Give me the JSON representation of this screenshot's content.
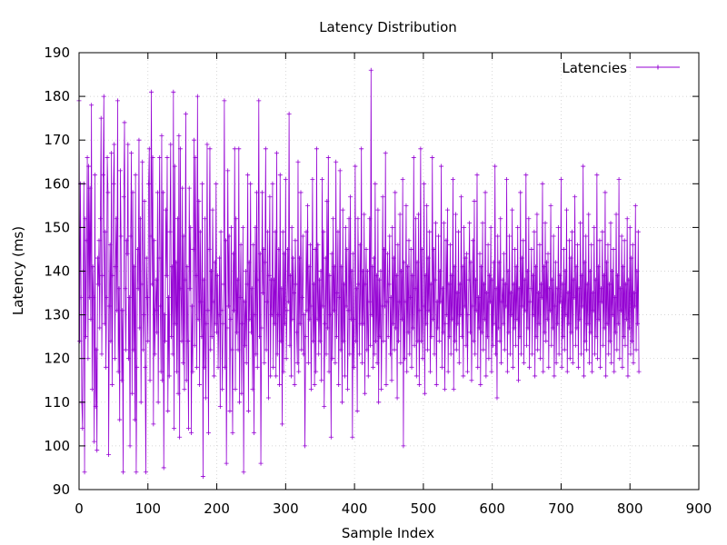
{
  "chart_data": {
    "type": "line",
    "title": "Latency Distribution",
    "xlabel": "Sample Index",
    "ylabel": "Latency (ms)",
    "xlim": [
      0,
      900
    ],
    "ylim": [
      90,
      190
    ],
    "xticks": [
      0,
      100,
      200,
      300,
      400,
      500,
      600,
      700,
      800,
      900
    ],
    "yticks": [
      90,
      100,
      110,
      120,
      130,
      140,
      150,
      160,
      170,
      180,
      190
    ],
    "grid": true,
    "legend_position": "top-right",
    "series": [
      {
        "name": "Latencies",
        "color": "#9400d3",
        "marker": "plus",
        "values": [
          179,
          124,
          160,
          134,
          110,
          104,
          140,
          160,
          94,
          152,
          125,
          147,
          166,
          120,
          164,
          134,
          159,
          129,
          178,
          113,
          141,
          134,
          101,
          162,
          109,
          122,
          99,
          143,
          137,
          147,
          127,
          152,
          175,
          121,
          139,
          162,
          180,
          128,
          149,
          118,
          134,
          166,
          158,
          98,
          132,
          146,
          124,
          167,
          114,
          139,
          160,
          169,
          120,
          141,
          152,
          131,
          179,
          117,
          136,
          106,
          163,
          148,
          115,
          131,
          94,
          157,
          174,
          136,
          122,
          147,
          144,
          169,
          120,
          134,
          100,
          148,
          167,
          112,
          158,
          122,
          141,
          106,
          162,
          94,
          118,
          145,
          136,
          170,
          127,
          152,
          110,
          137,
          165,
          122,
          130,
          156,
          118,
          94,
          143,
          134,
          124,
          160,
          168,
          115,
          148,
          181,
          137,
          166,
          105,
          147,
          121,
          131,
          138,
          126,
          158,
          110,
          143,
          166,
          132,
          117,
          171,
          115,
          158,
          95,
          130,
          124,
          154,
          139,
          166,
          108,
          134,
          116,
          149,
          169,
          125,
          141,
          121,
          181,
          104,
          164,
          128,
          142,
          117,
          152,
          112,
          171,
          102,
          168,
          136,
          124,
          159,
          119,
          148,
          113,
          138,
          176,
          115,
          141,
          124,
          104,
          159,
          136,
          150,
          103,
          132,
          117,
          145,
          170,
          123,
          166,
          139,
          118,
          180,
          129,
          156,
          114,
          149,
          133,
          125,
          160,
          93,
          138,
          118,
          152,
          111,
          128,
          169,
          131,
          103,
          145,
          168,
          122,
          140,
          125,
          154,
          133,
          116,
          142,
          128,
          160,
          126,
          139,
          118,
          130,
          143,
          109,
          149,
          131,
          113,
          128,
          137,
          179,
          118,
          147,
          96,
          127,
          163,
          132,
          148,
          108,
          129,
          150,
          122,
          103,
          144,
          131,
          168,
          113,
          152,
          126,
          138,
          122,
          168,
          110,
          134,
          146,
          112,
          128,
          150,
          94,
          133,
          123,
          140,
          119,
          137,
          162,
          108,
          142,
          129,
          160,
          126,
          136,
          113,
          146,
          103,
          130,
          150,
          121,
          158,
          118,
          138,
          179,
          125,
          144,
          96,
          127,
          158,
          135,
          145,
          119,
          142,
          168,
          122,
          133,
          149,
          111,
          139,
          157,
          116,
          138,
          130,
          160,
          118,
          138,
          128,
          149,
          116,
          167,
          121,
          130,
          145,
          114,
          162,
          124,
          136,
          105,
          149,
          117,
          144,
          128,
          161,
          120,
          131,
          145,
          133,
          176,
          123,
          139,
          116,
          150,
          129,
          143,
          135,
          114,
          147,
          137,
          126,
          119,
          165,
          117,
          143,
          128,
          158,
          122,
          134,
          148,
          121,
          130,
          100,
          125,
          149,
          131,
          155,
          119,
          141,
          129,
          146,
          113,
          132,
          161,
          124,
          137,
          114,
          145,
          117,
          168,
          129,
          146,
          121,
          138,
          124,
          140,
          115,
          161,
          132,
          149,
          109,
          128,
          143,
          121,
          156,
          127,
          166,
          117,
          139,
          130,
          102,
          144,
          120,
          152,
          131,
          141,
          119,
          165,
          125,
          135,
          149,
          114,
          134,
          163,
          122,
          141,
          110,
          154,
          124,
          137,
          116,
          150,
          132,
          145,
          113,
          131,
          152,
          121,
          157,
          129,
          140,
          102,
          144,
          118,
          129,
          164,
          124,
          136,
          108,
          152,
          137,
          121,
          146,
          128,
          168,
          119,
          140,
          128,
          153,
          112,
          137,
          145,
          122,
          140,
          116,
          133,
          152,
          123,
          186,
          130,
          141,
          118,
          143,
          121,
          160,
          124,
          139,
          119,
          154,
          110,
          138,
          125,
          140,
          113,
          132,
          157,
          124,
          145,
          132,
          167,
          114,
          133,
          144,
          125,
          137,
          148,
          121,
          134,
          115,
          150,
          128,
          143,
          122,
          158,
          127,
          139,
          111,
          146,
          124,
          133,
          153,
          119,
          140,
          129,
          161,
          100,
          142,
          120,
          133,
          155,
          117,
          141,
          126,
          147,
          121,
          134,
          145,
          118,
          139,
          127,
          166,
          123,
          136,
          152,
          116,
          142,
          124,
          153,
          114,
          131,
          168,
          124,
          145,
          120,
          132,
          160,
          112,
          139,
          128,
          155,
          122,
          143,
          131,
          149,
          117,
          137,
          125,
          166,
          129,
          145,
          121,
          138,
          151,
          114,
          133,
          127,
          148,
          124,
          140,
          133,
          164,
          118,
          136,
          126,
          151,
          113,
          128,
          147,
          130,
          154,
          117,
          137,
          125,
          146,
          121,
          139,
          129,
          161,
          113,
          141,
          124,
          153,
          122,
          135,
          128,
          149,
          119,
          137,
          130,
          157,
          125,
          141,
          116,
          150,
          132,
          143,
          123,
          144,
          117,
          130,
          138,
          151,
          126,
          142,
          115,
          132,
          147,
          124,
          156,
          121,
          138,
          131,
          162,
          118,
          134,
          127,
          144,
          114,
          141,
          126,
          151,
          122,
          137,
          129,
          158,
          116,
          135,
          125,
          146,
          120,
          139,
          133,
          150,
          117,
          138,
          123,
          142,
          128,
          164,
          121,
          136,
          111,
          148,
          127,
          142,
          124,
          152,
          119,
          133,
          138,
          128,
          144,
          122,
          137,
          132,
          161,
          117,
          140,
          126,
          148,
          121,
          135,
          130,
          154,
          118,
          137,
          127,
          145,
          123,
          141,
          129,
          150,
          115,
          136,
          125,
          158,
          121,
          143,
          132,
          147,
          119,
          138,
          131,
          162,
          123,
          140,
          127,
          152,
          118,
          133,
          136,
          145,
          121,
          139,
          130,
          149,
          116,
          141,
          125,
          153,
          122,
          135,
          128,
          146,
          120,
          137,
          134,
          160,
          117,
          141,
          126,
          151,
          124,
          142,
          129,
          144,
          118,
          136,
          131,
          155,
          123,
          138,
          127,
          148,
          116,
          132,
          142,
          119,
          136,
          128,
          150,
          121,
          139,
          133,
          161,
          118,
          137,
          125,
          145,
          122,
          140,
          130,
          154,
          117,
          135,
          128,
          147,
          120,
          143,
          126,
          149,
          119,
          138,
          134,
          157,
          123,
          141,
          127,
          146,
          118,
          136,
          129,
          151,
          121,
          139,
          132,
          164,
          116,
          142,
          124,
          148,
          122,
          137,
          128,
          153,
          119,
          140,
          126,
          146,
          117,
          135,
          131,
          150,
          121,
          138,
          125,
          162,
          120,
          141,
          129,
          147,
          118,
          136,
          133,
          149,
          123,
          139,
          127,
          158,
          116,
          142,
          128,
          146,
          121,
          137,
          124,
          151,
          119,
          140,
          130,
          145,
          117,
          134,
          126,
          153,
          122,
          139,
          128,
          161,
          120,
          136,
          131,
          148,
          118,
          141,
          125,
          147,
          123,
          137,
          129,
          152,
          116,
          138,
          127,
          150,
          121,
          143,
          124,
          146,
          119,
          135,
          132,
          155,
          122,
          140,
          128,
          149,
          117
        ]
      }
    ]
  }
}
